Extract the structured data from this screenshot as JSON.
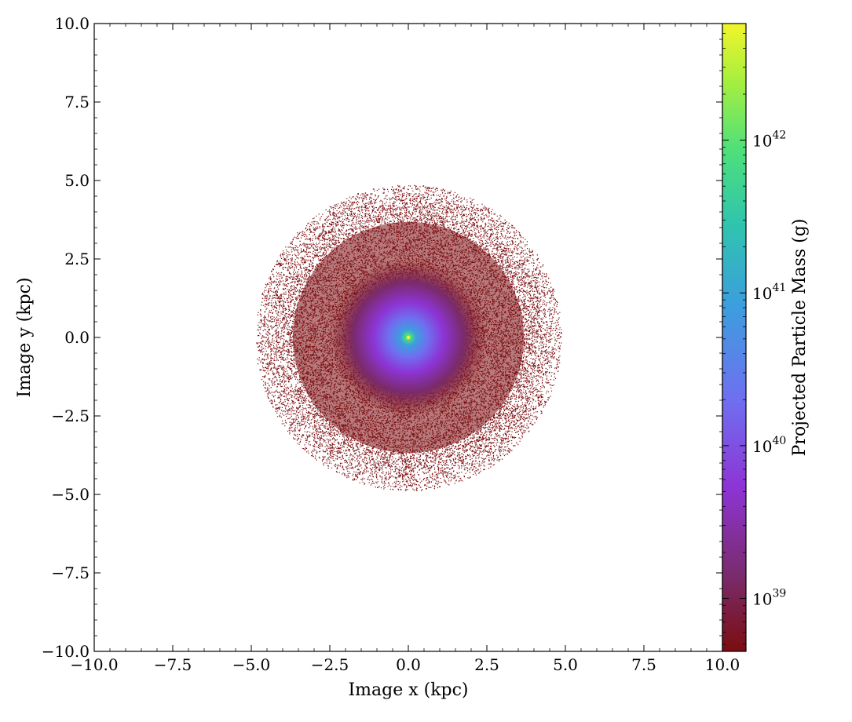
{
  "chart_data": {
    "type": "heatmap",
    "title": "",
    "xlabel": "Image x  (kpc)",
    "ylabel": "Image y  (kpc)",
    "xlim": [
      -10.0,
      10.0
    ],
    "ylim": [
      -10.0,
      10.0
    ],
    "x_ticks": [
      "−10.0",
      "−7.5",
      "−5.0",
      "−2.5",
      "0.0",
      "2.5",
      "5.0",
      "7.5",
      "10.0"
    ],
    "y_ticks": [
      "−10.0",
      "−7.5",
      "−5.0",
      "−2.5",
      "0.0",
      "2.5",
      "5.0",
      "7.5",
      "10.0"
    ],
    "x_tick_values": [
      -10,
      -7.5,
      -5,
      -2.5,
      0,
      2.5,
      5,
      7.5,
      10
    ],
    "y_tick_values": [
      -10,
      -7.5,
      -5,
      -2.5,
      0,
      2.5,
      5,
      7.5,
      10
    ],
    "grid": false,
    "colorbar": {
      "label": "Projected Particle Mass  (g)",
      "scale": "log",
      "range": [
        4.5e+38,
        5.8e+42
      ],
      "tick_values": [
        1e+39,
        1e+40,
        1e+41,
        1e+42
      ],
      "tick_labels": [
        {
          "base": "10",
          "exp": "39"
        },
        {
          "base": "10",
          "exp": "40"
        },
        {
          "base": "10",
          "exp": "41"
        },
        {
          "base": "10",
          "exp": "42"
        }
      ],
      "colormap": [
        "#7b0d10",
        "#7a2b6b",
        "#8d34d4",
        "#6f6ff0",
        "#3c9ede",
        "#2fc4ae",
        "#4fe07a",
        "#a8ef3e",
        "#f2f52b"
      ]
    },
    "distribution": {
      "shape": "circular particle cloud",
      "center": [
        0.0,
        0.0
      ],
      "outer_radius_kpc": 4.6,
      "bright_core_radius_kpc": 2.0,
      "peak_mass_g": 5.8e+42,
      "background_mass_g": 4.5e+38
    }
  }
}
